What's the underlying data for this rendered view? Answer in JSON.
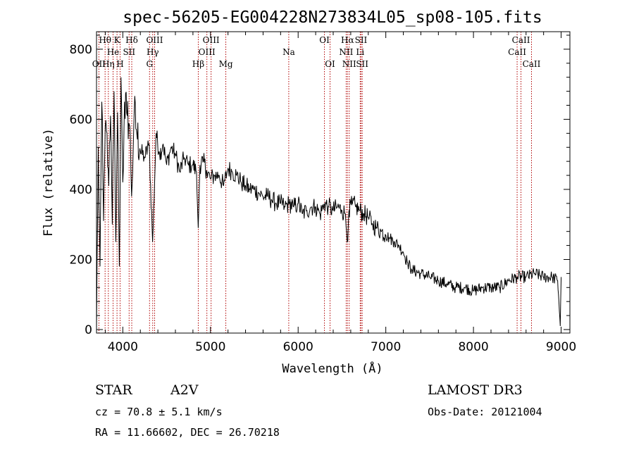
{
  "info": {
    "class_label": "STAR",
    "subclass": "A2V",
    "cz": "cz = 70.8 ± 5.1 km/s",
    "radec": "RA =  11.66602, DEC =  26.70218",
    "survey": "LAMOST DR3",
    "obsdate": "Obs-Date: 20121004"
  },
  "chart_data": {
    "type": "line",
    "title": "spec-56205-EG004228N273834L05_sp08-105.fits",
    "xlabel": "Wavelength (Å)",
    "ylabel": "Flux (relative)",
    "xlim": [
      3700,
      9100
    ],
    "ylim": [
      -10,
      850
    ],
    "x_ticks": [
      4000,
      5000,
      6000,
      7000,
      8000,
      9000
    ],
    "y_ticks": [
      0,
      200,
      400,
      600,
      800
    ],
    "grid": false,
    "line_color": "#000000",
    "reference_line_color": "#b00000",
    "spectral_lines": [
      {
        "label": "OII",
        "wavelength": 3727,
        "row": 2
      },
      {
        "label": "Hθ",
        "wavelength": 3798,
        "row": 0
      },
      {
        "label": "Hη",
        "wavelength": 3835,
        "row": 2
      },
      {
        "label": "He",
        "wavelength": 3889,
        "row": 1
      },
      {
        "label": "K",
        "wavelength": 3934,
        "row": 0
      },
      {
        "label": "H",
        "wavelength": 3969,
        "row": 2
      },
      {
        "label": "SII",
        "wavelength": 4072,
        "row": 1
      },
      {
        "label": "Hδ",
        "wavelength": 4102,
        "row": 0
      },
      {
        "label": "G",
        "wavelength": 4305,
        "row": 2
      },
      {
        "label": "Hγ",
        "wavelength": 4341,
        "row": 1
      },
      {
        "label": "OIII",
        "wavelength": 4363,
        "row": 0
      },
      {
        "label": "Hβ",
        "wavelength": 4861,
        "row": 2
      },
      {
        "label": "OIII",
        "wavelength": 4959,
        "row": 1
      },
      {
        "label": "OIII",
        "wavelength": 5007,
        "row": 0
      },
      {
        "label": "Mg",
        "wavelength": 5175,
        "row": 2
      },
      {
        "label": "Na",
        "wavelength": 5893,
        "row": 1
      },
      {
        "label": "OI",
        "wavelength": 6300,
        "row": 0
      },
      {
        "label": "OI",
        "wavelength": 6364,
        "row": 2
      },
      {
        "label": "NII",
        "wavelength": 6548,
        "row": 1
      },
      {
        "label": "Hα",
        "wavelength": 6563,
        "row": 0
      },
      {
        "label": "NII",
        "wavelength": 6583,
        "row": 2
      },
      {
        "label": "SII",
        "wavelength": 6717,
        "row": 0
      },
      {
        "label": "Li",
        "wavelength": 6708,
        "row": 1
      },
      {
        "label": "SII",
        "wavelength": 6731,
        "row": 2
      },
      {
        "label": "CaII",
        "wavelength": 8498,
        "row": 1
      },
      {
        "label": "CaII",
        "wavelength": 8542,
        "row": 0
      },
      {
        "label": "CaII",
        "wavelength": 8662,
        "row": 2
      }
    ],
    "series": [
      {
        "x": [
          3700,
          3720,
          3740,
          3760,
          3780,
          3800,
          3820,
          3840,
          3860,
          3880,
          3900,
          3920,
          3940,
          3960,
          3980,
          4000,
          4020,
          4050,
          4080,
          4100,
          4130,
          4160,
          4200,
          4250,
          4300,
          4340,
          4380,
          4420,
          4460,
          4500,
          4550,
          4600,
          4650,
          4700,
          4750,
          4800,
          4840,
          4860,
          4880,
          4920,
          4960,
          5000,
          5050,
          5100,
          5150,
          5200,
          5250,
          5300,
          5350,
          5400,
          5450,
          5500,
          5550,
          5600,
          5650,
          5700,
          5750,
          5800,
          5850,
          5900,
          5950,
          6000,
          6050,
          6100,
          6150,
          6200,
          6250,
          6300,
          6350,
          6400,
          6450,
          6500,
          6540,
          6560,
          6580,
          6620,
          6660,
          6700,
          6750,
          6800,
          6850,
          6900,
          6950,
          7000,
          7050,
          7100,
          7150,
          7200,
          7250,
          7300,
          7400,
          7500,
          7600,
          7700,
          7800,
          7900,
          8000,
          8100,
          8200,
          8300,
          8400,
          8500,
          8600,
          8700,
          8800,
          8900,
          8960,
          8975,
          8990,
          9000
        ],
        "y": [
          0,
          520,
          180,
          650,
          310,
          580,
          560,
          410,
          610,
          300,
          680,
          250,
          620,
          180,
          720,
          420,
          650,
          610,
          580,
          380,
          620,
          560,
          510,
          490,
          530,
          250,
          560,
          500,
          530,
          470,
          520,
          500,
          450,
          490,
          470,
          470,
          450,
          290,
          470,
          480,
          450,
          430,
          440,
          440,
          410,
          460,
          450,
          440,
          420,
          410,
          400,
          400,
          390,
          380,
          380,
          370,
          360,
          360,
          350,
          360,
          350,
          360,
          330,
          340,
          350,
          350,
          330,
          360,
          350,
          340,
          350,
          340,
          330,
          250,
          340,
          360,
          350,
          340,
          330,
          320,
          300,
          290,
          280,
          270,
          260,
          250,
          240,
          220,
          190,
          170,
          160,
          150,
          140,
          130,
          120,
          120,
          110,
          120,
          120,
          120,
          140,
          150,
          150,
          160,
          150,
          150,
          140,
          80,
          10,
          150
        ]
      }
    ]
  }
}
